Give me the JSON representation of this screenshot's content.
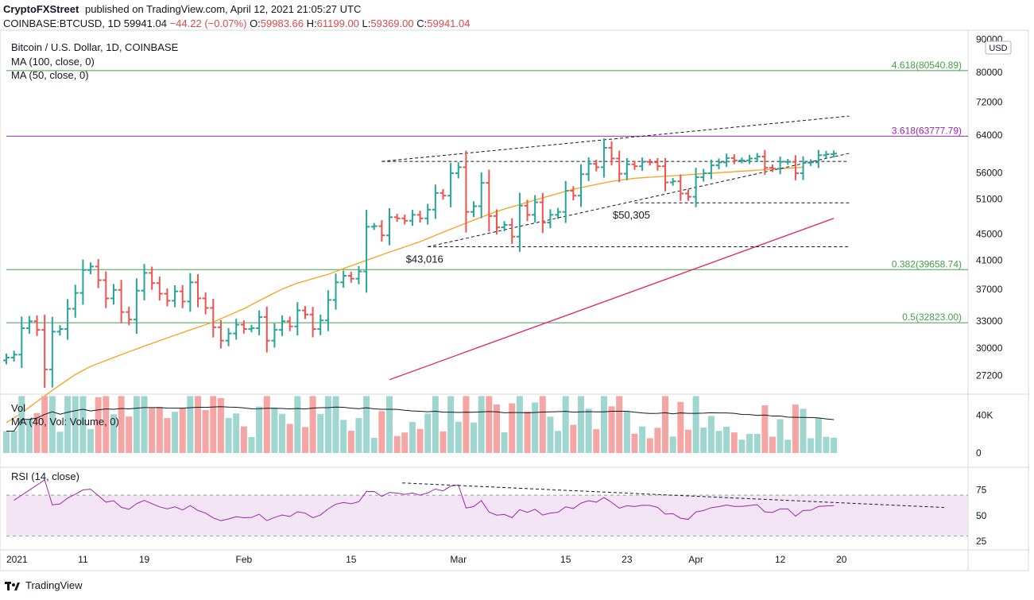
{
  "header": {
    "publisher": "CryptoFXStreet",
    "published_text": "published on TradingView.com, April 12, 2021 21:05:27 UTC",
    "symbol": "COINBASE:BTCUSD, 1D",
    "last": "59941.04",
    "change": "−44.22 (−0.07%)",
    "open_label": "O:",
    "open": "59983.66",
    "high_label": "H:",
    "high": "61199.00",
    "low_label": "L:",
    "low": "59369.00",
    "close_label": "C:",
    "close": "59941.04"
  },
  "footer": {
    "brand": "TradingView"
  },
  "colors": {
    "up": "#26a69a",
    "down": "#ef5350",
    "ma50": "#f7a21b",
    "ma100": "#e91e63",
    "fib_green": "#43a047",
    "fib_purple": "#9c27b0",
    "rsi": "#9c27b0",
    "rsi_band": "#f3e5f5",
    "vol_up": "#9fd6d0",
    "vol_down": "#f5a5a3"
  },
  "chart_data": {
    "type": "bar",
    "price_pane": {
      "legend": [
        "Bitcoin / U.S. Dollar, 1D, COINBASE",
        "MA (100, close, 0)",
        "MA (50, close, 0)"
      ],
      "currency_label": "USD",
      "y_ticks": [
        "90000",
        "80000",
        "72000",
        "64000",
        "56000",
        "51000",
        "45000",
        "41000",
        "37000",
        "33000",
        "30000",
        "27200"
      ],
      "y_tick_values": [
        90000,
        80000,
        72000,
        64000,
        56000,
        51000,
        45000,
        41000,
        37000,
        33000,
        30000,
        27200
      ],
      "scale": "log",
      "horizontal_levels": [
        {
          "label": "4.618(80540.89)",
          "value": 80540.89,
          "color": "fib_green"
        },
        {
          "label": "3.618(63777.79)",
          "value": 63777.79,
          "color": "fib_purple"
        },
        {
          "label": "0.382(39658.74)",
          "value": 39658.74,
          "color": "fib_green"
        },
        {
          "label": "0.5(32823.00)",
          "value": 32823.0,
          "color": "fib_green"
        }
      ],
      "annotations": [
        {
          "text": "$43,016",
          "day": 55,
          "value": 43016
        },
        {
          "text": "$50,305",
          "day": 82,
          "value": 50305
        }
      ],
      "dashed_lines": [
        {
          "from": [
            49,
            58300
          ],
          "to": [
            110,
            68500
          ]
        },
        {
          "from": [
            49,
            58300
          ],
          "to": [
            110,
            58300
          ]
        },
        {
          "from": [
            55,
            43016
          ],
          "to": [
            110,
            60000
          ]
        },
        {
          "from": [
            55,
            43016
          ],
          "to": [
            110,
            43016
          ]
        },
        {
          "from": [
            82,
            50305
          ],
          "to": [
            110,
            50305
          ]
        }
      ],
      "ohlc_close_series": [
        29000,
        29300,
        32200,
        33000,
        32000,
        27800,
        31800,
        32100,
        34500,
        36500,
        39600,
        40100,
        38200,
        35800,
        36900,
        34100,
        33200,
        36800,
        39200,
        37800,
        36400,
        35500,
        36700,
        35400,
        37900,
        35800,
        34600,
        32300,
        30800,
        31600,
        32600,
        32100,
        32200,
        33500,
        30800,
        32000,
        33000,
        32400,
        34300,
        33800,
        32100,
        33100,
        35600,
        37900,
        38800,
        38400,
        39400,
        46200,
        46300,
        44800,
        47800,
        47600,
        47200,
        48200,
        47600,
        49100,
        52100,
        51600,
        55900,
        57100,
        48700,
        49700,
        54000,
        48000,
        46100,
        46500,
        44600,
        49800,
        48200,
        50400,
        46900,
        48200,
        48700,
        52500,
        51600,
        55700,
        57800,
        57100,
        61200,
        58900,
        55800,
        57700,
        57300,
        58200,
        58100,
        57300,
        54100,
        54300,
        52000,
        51400,
        55100,
        55900,
        57500,
        58100,
        59000,
        58500,
        58500,
        58900,
        59300,
        57000,
        56800,
        58200,
        58200,
        55900,
        58000,
        58100,
        59600,
        59800,
        59941
      ],
      "ma50": [
        23000,
        23400,
        23800,
        24300,
        24800,
        25300,
        25800,
        26300,
        26800,
        27300,
        27700,
        28100,
        28400,
        28700,
        29000,
        29300,
        29600,
        29900,
        30200,
        30500,
        30800,
        31100,
        31400,
        31700,
        32000,
        32300,
        32600,
        32900,
        33300,
        33700,
        34100,
        34500,
        35000,
        35500,
        36000,
        36500,
        37000,
        37400,
        37800,
        38100,
        38400,
        38700,
        39000,
        39400,
        39800,
        40200,
        40600,
        41000,
        41400,
        41800,
        42200,
        42600,
        43000,
        43400,
        43800,
        44300,
        44800,
        45300,
        45800,
        46300,
        46800,
        47300,
        47800,
        48300,
        48800,
        49200,
        49600,
        50000,
        50400,
        50800,
        51200,
        51600,
        52000,
        52400,
        52800,
        53100,
        53400,
        53700,
        54000,
        54300,
        54500,
        54700,
        54900,
        55000,
        55100,
        55200,
        55300,
        55400,
        55500,
        55600,
        55700,
        55800,
        55900,
        56000,
        56100,
        56200,
        56300,
        56400,
        56500,
        56600,
        56700,
        56800,
        56900,
        57000,
        57100
      ],
      "ma100_start_day": 50,
      "ma100_start": 26800,
      "ma100_end": 47600
    },
    "volume_pane": {
      "legend": [
        "Vol",
        "MA (40, Vol: Volume, 0)"
      ],
      "y_ticks": [
        "40K",
        "0"
      ],
      "y_tick_values": [
        40000,
        0
      ]
    },
    "rsi_pane": {
      "legend": [
        "RSI (14, close)"
      ],
      "y_ticks": [
        "75",
        "50",
        "25"
      ],
      "y_tick_values": [
        75,
        50,
        25
      ],
      "band": [
        30,
        70
      ],
      "trendline": {
        "from": [
          76,
          82
        ],
        "to": [
          180,
          58
        ]
      }
    },
    "x_ticks": [
      {
        "label": "2021",
        "day": 0
      },
      {
        "label": "11",
        "day": 10
      },
      {
        "label": "19",
        "day": 18
      },
      {
        "label": "Feb",
        "day": 31
      },
      {
        "label": "15",
        "day": 45
      },
      {
        "label": "Mar",
        "day": 59
      },
      {
        "label": "15",
        "day": 73
      },
      {
        "label": "23",
        "day": 81
      },
      {
        "label": "Apr",
        "day": 90
      },
      {
        "label": "12",
        "day": 101
      },
      {
        "label": "20",
        "day": 109
      }
    ]
  }
}
